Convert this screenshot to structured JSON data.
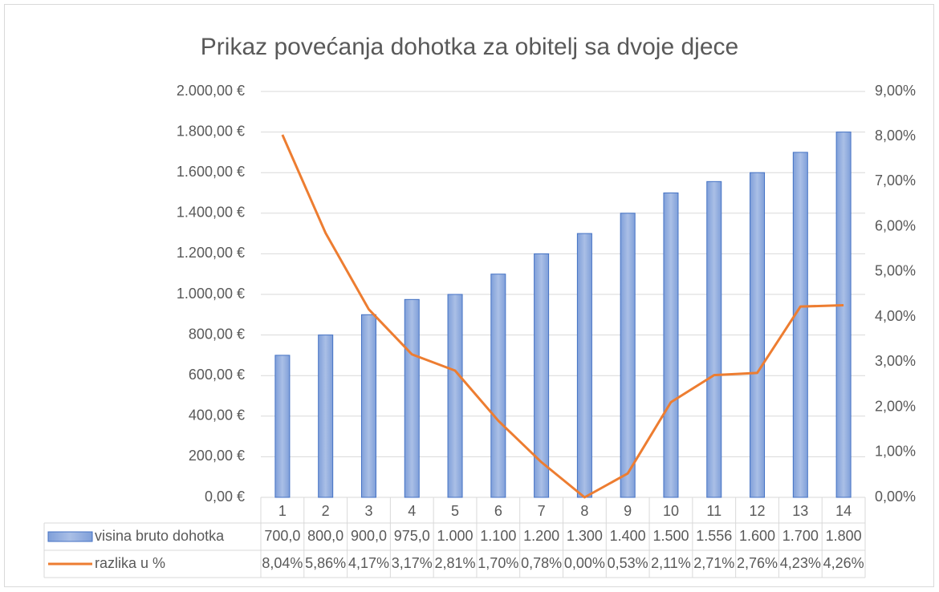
{
  "chart_data": {
    "type": "bar",
    "title": "Prikaz povećanja dohotka za obitelj sa dvoje djece",
    "categories": [
      "1",
      "2",
      "3",
      "4",
      "5",
      "6",
      "7",
      "8",
      "9",
      "10",
      "11",
      "12",
      "13",
      "14"
    ],
    "series": [
      {
        "name": "visina bruto dohotka",
        "type": "bar",
        "color": "#8faadc",
        "values": [
          700,
          800,
          900,
          975,
          1000,
          1100,
          1200,
          1300,
          1400,
          1500,
          1556,
          1600,
          1700,
          1800
        ],
        "value_labels": [
          "700,0",
          "800,0",
          "900,0",
          "975,0",
          "1.000",
          "1.100",
          "1.200",
          "1.300",
          "1.400",
          "1.500",
          "1.556",
          "1.600",
          "1.700",
          "1.800"
        ]
      },
      {
        "name": "razlika u %",
        "type": "line",
        "axis": "y2",
        "color": "#ed7d31",
        "values": [
          8.04,
          5.86,
          4.17,
          3.17,
          2.81,
          1.7,
          0.78,
          0.0,
          0.53,
          2.11,
          2.71,
          2.76,
          4.23,
          4.26
        ],
        "value_labels": [
          "8,04%",
          "5,86%",
          "4,17%",
          "3,17%",
          "2,81%",
          "1,70%",
          "0,78%",
          "0,00%",
          "0,53%",
          "2,11%",
          "2,71%",
          "2,76%",
          "4,23%",
          "4,26%"
        ]
      }
    ],
    "ylim": [
      0,
      2000
    ],
    "yticks": [
      {
        "value": 0,
        "label": "0,00 €"
      },
      {
        "value": 200,
        "label": "200,00 €"
      },
      {
        "value": 400,
        "label": "400,00 €"
      },
      {
        "value": 600,
        "label": "600,00 €"
      },
      {
        "value": 800,
        "label": "800,00 €"
      },
      {
        "value": 1000,
        "label": "1.000,00 €"
      },
      {
        "value": 1200,
        "label": "1.200,00 €"
      },
      {
        "value": 1400,
        "label": "1.400,00 €"
      },
      {
        "value": 1600,
        "label": "1.600,00 €"
      },
      {
        "value": 1800,
        "label": "1.800,00 €"
      },
      {
        "value": 2000,
        "label": "2.000,00 €"
      }
    ],
    "y2lim": [
      0,
      9
    ],
    "y2ticks": [
      {
        "value": 0,
        "label": "0,00%"
      },
      {
        "value": 1,
        "label": "1,00%"
      },
      {
        "value": 2,
        "label": "2,00%"
      },
      {
        "value": 3,
        "label": "3,00%"
      },
      {
        "value": 4,
        "label": "4,00%"
      },
      {
        "value": 5,
        "label": "5,00%"
      },
      {
        "value": 6,
        "label": "6,00%"
      },
      {
        "value": 7,
        "label": "7,00%"
      },
      {
        "value": 8,
        "label": "8,00%"
      },
      {
        "value": 9,
        "label": "9,00%"
      }
    ],
    "grid": true
  }
}
